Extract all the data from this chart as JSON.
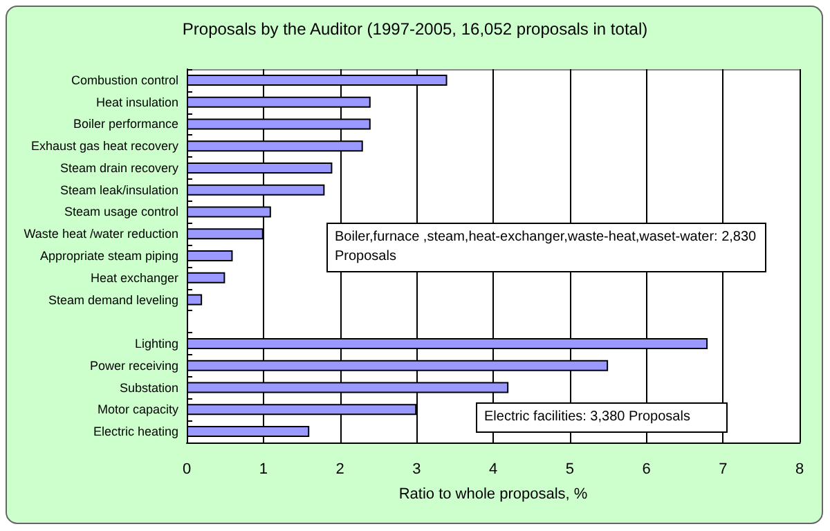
{
  "chart_data": {
    "type": "bar",
    "orientation": "horizontal",
    "title": "Proposals by the Auditor (1997-2005, 16,052 proposals in total)",
    "xlabel": "Ratio to whole proposals, %",
    "categories": [
      "Combustion control",
      "Heat insulation",
      "Boiler performance",
      "Exhaust gas heat recovery",
      "Steam drain recovery",
      "Steam leak/insulation",
      "Steam usage control",
      "Waste heat /water reduction",
      "Appropriate steam piping",
      "Heat exchanger",
      "Steam demand leveling",
      null,
      "Lighting",
      "Power receiving",
      "Substation",
      "Motor capacity",
      "Electric heating"
    ],
    "values": [
      3.4,
      2.4,
      2.4,
      2.3,
      1.9,
      1.8,
      1.1,
      1.0,
      0.6,
      0.5,
      0.2,
      null,
      6.8,
      5.5,
      4.2,
      3.0,
      1.6
    ],
    "color": "#9999ff",
    "xlim": [
      0,
      8
    ],
    "xticks": [
      0,
      1,
      2,
      3,
      4,
      5,
      6,
      7,
      8
    ],
    "grid": "x",
    "annotations": [
      "Boiler,furnace ,steam,heat-exchanger,waste-heat,waset-water: 2,830 Proposals",
      "Electric facilities: 3,380 Proposals"
    ]
  }
}
